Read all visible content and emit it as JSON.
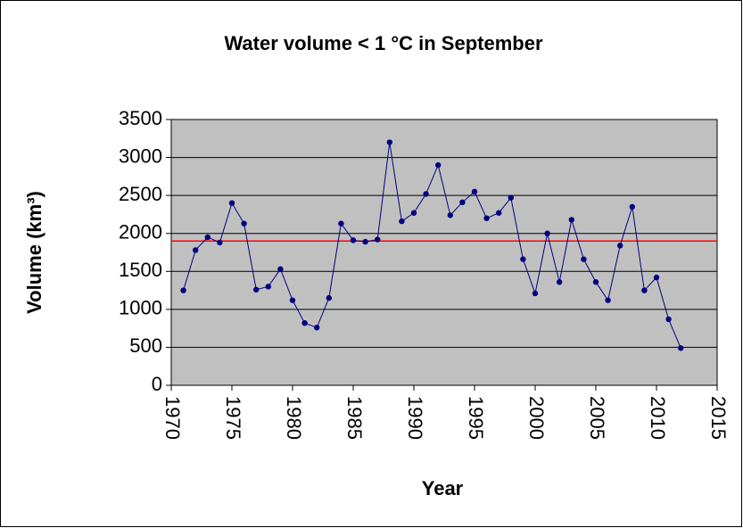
{
  "chart_data": {
    "type": "line",
    "title": "Water volume < 1 °C in September",
    "xlabel": "Year",
    "ylabel": "Volume (km³)",
    "x": [
      1971,
      1972,
      1973,
      1974,
      1975,
      1976,
      1977,
      1978,
      1979,
      1980,
      1981,
      1982,
      1983,
      1984,
      1985,
      1986,
      1987,
      1988,
      1989,
      1990,
      1991,
      1992,
      1993,
      1994,
      1995,
      1996,
      1997,
      1998,
      1999,
      2000,
      2001,
      2002,
      2003,
      2004,
      2005,
      2006,
      2007,
      2008,
      2009,
      2010,
      2011,
      2012
    ],
    "series": [
      {
        "color": "#000080",
        "values": [
          1250,
          1780,
          1950,
          1880,
          2400,
          2130,
          1260,
          1300,
          1530,
          1120,
          820,
          760,
          1150,
          2130,
          1910,
          1890,
          1920,
          3200,
          2160,
          2270,
          2520,
          2900,
          2240,
          2410,
          2550,
          2200,
          2270,
          2470,
          1660,
          1210,
          2000,
          1360,
          2180,
          1660,
          1360,
          1120,
          1840,
          2350,
          1250,
          1420,
          870,
          490
        ]
      }
    ],
    "reference_line": {
      "value": 1900,
      "color": "#ff0000"
    },
    "xlim": [
      1970,
      2015
    ],
    "xticks": [
      1970,
      1975,
      1980,
      1985,
      1990,
      1995,
      2000,
      2005,
      2010,
      2015
    ],
    "ylim": [
      0,
      3500
    ],
    "yticks": [
      0,
      500,
      1000,
      1500,
      2000,
      2500,
      3000,
      3500
    ],
    "grid": true,
    "plot_background": "#c0c0c0"
  }
}
